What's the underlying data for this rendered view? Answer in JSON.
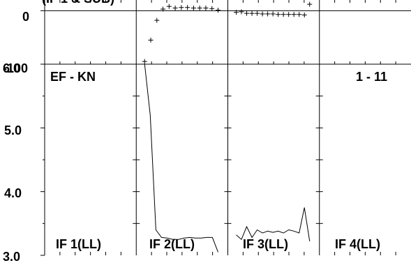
{
  "chart_data": {
    "type": "line",
    "title": "",
    "top_label": "(IF 1 & SUB)",
    "left_label": "EF - KN",
    "right_label": "1 - 11",
    "upper_axis": {
      "ylim": [
        -100,
        20
      ],
      "tick_labels": [
        "0",
        "-100"
      ]
    },
    "lower_axis": {
      "ylim": [
        3.0,
        6.0
      ],
      "tick_labels": [
        "6.0",
        "5.0",
        "4.0",
        "3.0"
      ]
    },
    "panels": [
      {
        "label": "IF 1(LL)",
        "upper_values": [],
        "lower_values": []
      },
      {
        "label": "IF 2(LL)",
        "upper_values": [
          -95,
          -55,
          -18,
          3,
          8,
          5,
          6,
          6,
          5,
          5,
          5,
          4,
          1
        ],
        "lower_values": [
          6.0,
          5.2,
          3.4,
          3.28,
          3.27,
          3.25,
          3.25,
          3.27,
          3.28,
          3.27,
          3.27,
          3.28,
          3.28,
          3.05
        ]
      },
      {
        "label": "IF 3(LL)",
        "upper_values": [
          -3,
          -2,
          -5,
          -5,
          -5,
          -6,
          -6,
          -6,
          -7,
          -7,
          -7,
          -7,
          -7,
          -8,
          12
        ],
        "lower_values": [
          3.32,
          3.25,
          3.45,
          3.28,
          3.4,
          3.35,
          3.38,
          3.36,
          3.38,
          3.35,
          3.4,
          3.38,
          3.35,
          3.75,
          3.22
        ]
      },
      {
        "label": "IF 4(LL)",
        "upper_values": [],
        "lower_values": []
      }
    ]
  }
}
